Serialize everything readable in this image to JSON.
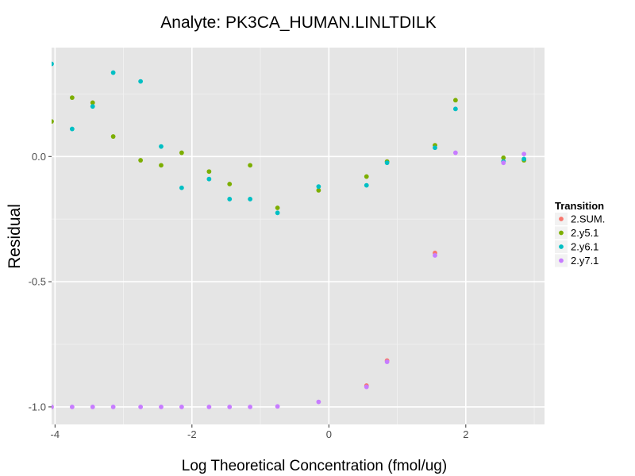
{
  "chart_data": {
    "type": "scatter",
    "title": "Analyte: PK3CA_HUMAN.LINLTDILK",
    "xlabel": "Log Theoretical Concentration (fmol/ug)",
    "ylabel": "Residual",
    "xlim": [
      -4.05,
      3.15
    ],
    "ylim": [
      -1.07,
      0.435
    ],
    "x_ticks": [
      -4,
      -2,
      0,
      2
    ],
    "x_tick_labels": [
      "-4",
      "-2",
      "0",
      "2"
    ],
    "y_ticks": [
      -1.0,
      -0.5,
      0.0
    ],
    "y_tick_labels": [
      "-1.0",
      "-0.5",
      "0.0"
    ],
    "grid": true,
    "legend": {
      "title": "Transition",
      "position": "right"
    },
    "series": [
      {
        "name": "2.SUM.",
        "color": "#F8766D",
        "points": [
          [
            1.55,
            -0.385
          ],
          [
            0.85,
            -0.815
          ],
          [
            0.55,
            -0.915
          ]
        ]
      },
      {
        "name": "2.y5.1",
        "color": "#7CAE00",
        "points": [
          [
            -4.05,
            0.14
          ],
          [
            -3.75,
            0.235
          ],
          [
            -3.45,
            0.215
          ],
          [
            -3.15,
            0.08
          ],
          [
            -2.75,
            -0.015
          ],
          [
            -2.45,
            -0.035
          ],
          [
            -2.15,
            0.015
          ],
          [
            -1.75,
            -0.06
          ],
          [
            -1.45,
            -0.11
          ],
          [
            -1.15,
            -0.035
          ],
          [
            -0.75,
            -0.205
          ],
          [
            -0.15,
            -0.135
          ],
          [
            0.55,
            -0.08
          ],
          [
            0.85,
            -0.02
          ],
          [
            1.55,
            0.045
          ],
          [
            1.85,
            0.225
          ],
          [
            2.55,
            -0.005
          ],
          [
            2.85,
            -0.015
          ]
        ]
      },
      {
        "name": "2.y6.1",
        "color": "#00BFC4",
        "points": [
          [
            -4.05,
            0.37
          ],
          [
            -3.75,
            0.11
          ],
          [
            -3.45,
            0.2
          ],
          [
            -3.15,
            0.335
          ],
          [
            -2.75,
            0.3
          ],
          [
            -2.45,
            0.04
          ],
          [
            -2.15,
            -0.125
          ],
          [
            -1.75,
            -0.09
          ],
          [
            -1.45,
            -0.17
          ],
          [
            -1.15,
            -0.17
          ],
          [
            -0.75,
            -0.225
          ],
          [
            -0.15,
            -0.12
          ],
          [
            0.55,
            -0.115
          ],
          [
            0.85,
            -0.025
          ],
          [
            1.55,
            0.035
          ],
          [
            1.85,
            0.19
          ],
          [
            2.55,
            -0.02
          ],
          [
            2.85,
            -0.01
          ]
        ]
      },
      {
        "name": "2.y7.1",
        "color": "#C77CFF",
        "points": [
          [
            -4.05,
            -1.0
          ],
          [
            -3.75,
            -1.0
          ],
          [
            -3.45,
            -1.0
          ],
          [
            -3.15,
            -1.0
          ],
          [
            -2.75,
            -1.0
          ],
          [
            -2.45,
            -1.0
          ],
          [
            -2.15,
            -1.0
          ],
          [
            -1.75,
            -1.0
          ],
          [
            -1.45,
            -1.0
          ],
          [
            -1.15,
            -1.0
          ],
          [
            -0.75,
            -0.998
          ],
          [
            -0.15,
            -0.98
          ],
          [
            0.55,
            -0.92
          ],
          [
            0.85,
            -0.82
          ],
          [
            1.55,
            -0.395
          ],
          [
            1.85,
            0.015
          ],
          [
            2.55,
            -0.025
          ],
          [
            2.85,
            0.01
          ]
        ]
      }
    ]
  }
}
